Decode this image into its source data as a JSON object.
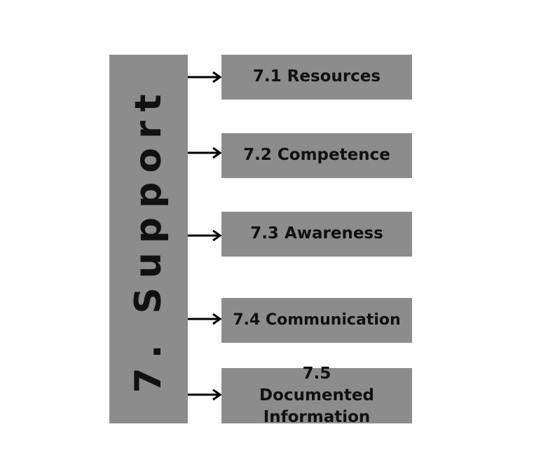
{
  "main": {
    "title": "7. Support",
    "box_color": "#8c8c8c"
  },
  "items": [
    {
      "label": "7.1 Resources"
    },
    {
      "label": "7.2 Competence"
    },
    {
      "label": "7.3 Awareness"
    },
    {
      "label": "7.4 Communication"
    },
    {
      "label": "7.5 Documented Information"
    }
  ],
  "colors": {
    "box": "#8c8c8c",
    "text": "#111111",
    "arrow": "#000000"
  }
}
